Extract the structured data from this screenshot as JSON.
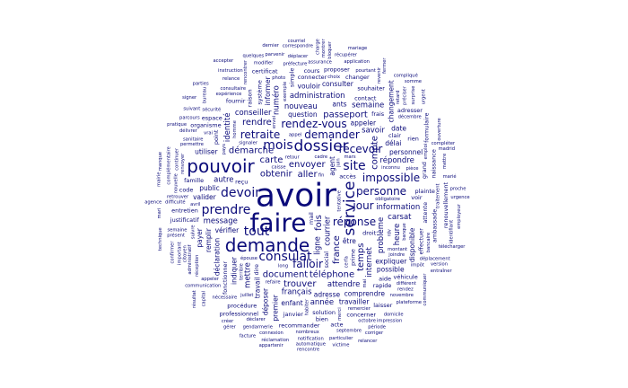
{
  "word_color": "#0b0b7a",
  "words": [
    {
      "text": "avoir",
      "weight": 100
    },
    {
      "text": "faire",
      "weight": 72
    },
    {
      "text": "pouvoir",
      "weight": 58
    },
    {
      "text": "demande",
      "weight": 50
    },
    {
      "text": "service",
      "weight": 48
    },
    {
      "text": "dossier",
      "weight": 42
    },
    {
      "text": "consulat",
      "weight": 38
    },
    {
      "text": "mois",
      "weight": 36
    },
    {
      "text": "site",
      "weight": 36
    },
    {
      "text": "devoir",
      "weight": 34
    },
    {
      "text": "tout",
      "weight": 30
    },
    {
      "text": "prendre",
      "weight": 30
    },
    {
      "text": "jour",
      "weight": 28
    },
    {
      "text": "réponse",
      "weight": 28
    },
    {
      "text": "falloir",
      "weight": 27
    },
    {
      "text": "personne",
      "weight": 26
    },
    {
      "text": "rendez-vous",
      "weight": 25
    },
    {
      "text": "recevoir",
      "weight": 25
    },
    {
      "text": "demander",
      "weight": 24
    },
    {
      "text": "retraite",
      "weight": 24
    },
    {
      "text": "impossible",
      "weight": 24
    },
    {
      "text": "document",
      "weight": 22
    },
    {
      "text": "téléphone",
      "weight": 22
    },
    {
      "text": "démarche",
      "weight": 22
    },
    {
      "text": "compte",
      "weight": 22
    },
    {
      "text": "passeport",
      "weight": 20
    },
    {
      "text": "aller",
      "weight": 20
    },
    {
      "text": "fois",
      "weight": 20
    },
    {
      "text": "envoyer",
      "weight": 19
    },
    {
      "text": "france",
      "weight": 19
    },
    {
      "text": "obtenir",
      "weight": 19
    },
    {
      "text": "temps",
      "weight": 18
    },
    {
      "text": "trouver",
      "weight": 18
    },
    {
      "text": "rendre",
      "weight": 18
    },
    {
      "text": "carte",
      "weight": 18
    },
    {
      "text": "nouveau",
      "weight": 17
    },
    {
      "text": "courrier",
      "weight": 17
    },
    {
      "text": "répondre",
      "weight": 17
    },
    {
      "text": "problème",
      "weight": 17
    },
    {
      "text": "français",
      "weight": 16
    },
    {
      "text": "information",
      "weight": 16
    },
    {
      "text": "autre",
      "weight": 16
    },
    {
      "text": "ligne",
      "weight": 16
    },
    {
      "text": "carsat",
      "weight": 16
    },
    {
      "text": "attendre",
      "weight": 15
    },
    {
      "text": "internet",
      "weight": 15
    },
    {
      "text": "savoir",
      "weight": 15
    },
    {
      "text": "heure",
      "weight": 15
    },
    {
      "text": "mettre",
      "weight": 15
    },
    {
      "text": "conseiller",
      "weight": 15
    },
    {
      "text": "administration",
      "weight": 14
    },
    {
      "text": "message",
      "weight": 14
    },
    {
      "text": "numéro",
      "weight": 14
    },
    {
      "text": "année",
      "weight": 14
    },
    {
      "text": "identité",
      "weight": 14
    },
    {
      "text": "semaine",
      "weight": 14
    },
    {
      "text": "question",
      "weight": 13
    },
    {
      "text": "délai",
      "weight": 13
    },
    {
      "text": "être",
      "weight": 13
    },
    {
      "text": "appeler",
      "weight": 13
    },
    {
      "text": "indiquer",
      "weight": 12
    },
    {
      "text": "expliquer",
      "weight": 12
    },
    {
      "text": "déclaration",
      "weight": 12
    },
    {
      "text": "vérifier",
      "weight": 12
    },
    {
      "text": "adresse",
      "weight": 12
    },
    {
      "text": "possible",
      "weight": 12
    },
    {
      "text": "enfant",
      "weight": 12
    },
    {
      "text": "valider",
      "weight": 12
    },
    {
      "text": "déposer",
      "weight": 12
    },
    {
      "text": "personnel",
      "weight": 12
    },
    {
      "text": "agent",
      "weight": 11
    },
    {
      "text": "travail",
      "weight": 11
    },
    {
      "text": "vouloir",
      "weight": 11
    },
    {
      "text": "informer",
      "weight": 11
    },
    {
      "text": "public",
      "weight": 11
    },
    {
      "text": "comprendre",
      "weight": 11
    },
    {
      "text": "remplir",
      "weight": 11
    },
    {
      "text": "travailler",
      "weight": 11
    },
    {
      "text": "premier",
      "weight": 11
    },
    {
      "text": "utiliser",
      "weight": 11
    },
    {
      "text": "consulter",
      "weight": 11
    },
    {
      "text": "changement",
      "weight": 11
    },
    {
      "text": "disponible",
      "weight": 11
    },
    {
      "text": "payer",
      "weight": 11
    },
    {
      "text": "ants",
      "weight": 11
    },
    {
      "text": "date",
      "weight": 11
    },
    {
      "text": "rapide",
      "weight": 10
    },
    {
      "text": "grand",
      "weight": 10
    },
    {
      "text": "social",
      "weight": 10
    },
    {
      "text": "prime",
      "weight": 10
    },
    {
      "text": "contact",
      "weight": 10
    },
    {
      "text": "point",
      "weight": 10
    },
    {
      "text": "solution",
      "weight": 10
    },
    {
      "text": "fournir",
      "weight": 10
    },
    {
      "text": "accès",
      "weight": 10
    },
    {
      "text": "système",
      "weight": 10
    },
    {
      "text": "plainte",
      "weight": 10
    },
    {
      "text": "clair",
      "weight": 10
    },
    {
      "text": "voir",
      "weight": 10
    },
    {
      "text": "simple",
      "weight": 10
    },
    {
      "text": "dire",
      "weight": 10
    },
    {
      "text": "fonctionner",
      "weight": 10
    },
    {
      "text": "effectuer",
      "weight": 10
    },
    {
      "text": "attente",
      "weight": 10
    },
    {
      "text": "aide",
      "weight": 10
    },
    {
      "text": "janvier",
      "weight": 10
    },
    {
      "text": "bien",
      "weight": 10
    },
    {
      "text": "mail",
      "weight": 10
    },
    {
      "text": "connecter",
      "weight": 9
    },
    {
      "text": "droit",
      "weight": 9
    },
    {
      "text": "souhaiter",
      "weight": 9
    },
    {
      "text": "proposer",
      "weight": 9
    },
    {
      "text": "concerner",
      "weight": 9
    },
    {
      "text": "procédure",
      "weight": 9
    },
    {
      "text": "justificatif",
      "weight": 9
    },
    {
      "text": "cours",
      "weight": 9
    },
    {
      "text": "adresser",
      "weight": 9
    },
    {
      "text": "changer",
      "weight": 9
    },
    {
      "text": "organisme",
      "weight": 9
    },
    {
      "text": "recommander",
      "weight": 9
    },
    {
      "text": "rien",
      "weight": 9
    },
    {
      "text": "frais",
      "weight": 9
    },
    {
      "text": "naissance",
      "weight": 9
    },
    {
      "text": "certificat",
      "weight": 9
    },
    {
      "text": "famille",
      "weight": 9
    },
    {
      "text": "entretien",
      "weight": 9
    },
    {
      "text": "renouvellement",
      "weight": 9
    },
    {
      "text": "professionnel",
      "weight": 9
    },
    {
      "text": "espace",
      "weight": 9
    },
    {
      "text": "ambassade",
      "weight": 9
    },
    {
      "text": "formulaire",
      "weight": 9
    },
    {
      "text": "raison",
      "weight": 9
    },
    {
      "text": "véhicule",
      "weight": 9
    },
    {
      "text": "laisser",
      "weight": 9
    },
    {
      "text": "reçu",
      "weight": 9
    },
    {
      "text": "code",
      "weight": 9
    },
    {
      "text": "acte",
      "weight": 9
    },
    {
      "text": "administratif",
      "weight": 8
    },
    {
      "text": "appel",
      "weight": 8
    },
    {
      "text": "long",
      "weight": 8
    },
    {
      "text": "permettre",
      "weight": 8
    },
    {
      "text": "emploi",
      "weight": 8
    },
    {
      "text": "impôt",
      "weight": 8
    },
    {
      "text": "expérience",
      "weight": 8
    },
    {
      "text": "montant",
      "weight": 8
    },
    {
      "text": "mars",
      "weight": 8
    },
    {
      "text": "terrible",
      "weight": 8
    },
    {
      "text": "préfecture",
      "weight": 8
    },
    {
      "text": "déclarer",
      "weight": 8
    },
    {
      "text": "difficulté",
      "weight": 8
    },
    {
      "text": "nécessaire",
      "weight": 8
    },
    {
      "text": "exemple",
      "weight": 8
    },
    {
      "text": "assurance",
      "weight": 8
    },
    {
      "text": "consultaire",
      "weight": 8
    },
    {
      "text": "différent",
      "weight": 8
    },
    {
      "text": "envoi",
      "weight": 8
    },
    {
      "text": "renvoyer",
      "weight": 8
    },
    {
      "text": "sécurité",
      "weight": 8
    },
    {
      "text": "traitement",
      "weight": 8
    },
    {
      "text": "nombreux",
      "weight": 8
    },
    {
      "text": "cadre",
      "weight": 8
    },
    {
      "text": "pièce",
      "weight": 8
    },
    {
      "text": "suivre",
      "weight": 8
    },
    {
      "text": "rdv",
      "weight": 8
    },
    {
      "text": "septembre",
      "weight": 8
    },
    {
      "text": "retour",
      "weight": 8
    },
    {
      "text": "refaire",
      "weight": 8
    },
    {
      "text": "préciser",
      "weight": 8
    },
    {
      "text": "appeler",
      "weight": 8
    },
    {
      "text": "décembre",
      "weight": 7
    },
    {
      "text": "fin",
      "weight": 7
    },
    {
      "text": "homme",
      "weight": 7
    },
    {
      "text": "sanitaire",
      "weight": 7
    },
    {
      "text": "novembre",
      "weight": 7
    },
    {
      "text": "octobre",
      "weight": 7
    },
    {
      "text": "juillet",
      "weight": 7
    },
    {
      "text": "avril",
      "weight": 7
    },
    {
      "text": "juin",
      "weight": 7
    },
    {
      "text": "mai",
      "weight": 7
    },
    {
      "text": "semaine",
      "weight": 7
    },
    {
      "text": "pourtant",
      "weight": 7
    },
    {
      "text": "vrai",
      "weight": 7
    },
    {
      "text": "modifier",
      "weight": 7
    },
    {
      "text": "déplacer",
      "weight": 7
    },
    {
      "text": "bancaire",
      "weight": 7
    },
    {
      "text": "caisse",
      "weight": 7
    },
    {
      "text": "gendarmerie",
      "weight": 7
    },
    {
      "text": "délivrer",
      "weight": 7
    },
    {
      "text": "réception",
      "weight": 7
    },
    {
      "text": "relance",
      "weight": 7
    },
    {
      "text": "application",
      "weight": 7
    },
    {
      "text": "banque",
      "weight": 7
    },
    {
      "text": "parvenir",
      "weight": 7
    },
    {
      "text": "automatique",
      "weight": 7
    },
    {
      "text": "continuer",
      "weight": 7
    },
    {
      "text": "marié",
      "weight": 7
    },
    {
      "text": "récupérer",
      "weight": 7
    },
    {
      "text": "réclamation",
      "weight": 7
    },
    {
      "text": "nouvelle",
      "weight": 7
    },
    {
      "text": "particulier",
      "weight": 7
    },
    {
      "text": "remercier",
      "weight": 7
    },
    {
      "text": "citoyen",
      "weight": 7
    },
    {
      "text": "signaler",
      "weight": 7
    },
    {
      "text": "obligatoire",
      "weight": 7
    },
    {
      "text": "rencontrer",
      "weight": 7
    },
    {
      "text": "complémentaire",
      "weight": 7
    },
    {
      "text": "cerfa",
      "weight": 7
    },
    {
      "text": "connexion",
      "weight": 7
    },
    {
      "text": "domicile",
      "weight": 7
    },
    {
      "text": "revenir",
      "weight": 7
    },
    {
      "text": "mettre",
      "weight": 7
    },
    {
      "text": "charge",
      "weight": 7
    },
    {
      "text": "pays",
      "weight": 7
    },
    {
      "text": "bureau",
      "weight": 7
    },
    {
      "text": "compliqué",
      "weight": 7
    },
    {
      "text": "retrouver",
      "weight": 7
    },
    {
      "text": "impression",
      "weight": 7
    },
    {
      "text": "communication",
      "weight": 7
    },
    {
      "text": "correspondre",
      "weight": 7
    },
    {
      "text": "déplacement",
      "weight": 7
    },
    {
      "text": "notification",
      "weight": 7
    },
    {
      "text": "plateforme",
      "weight": 7
    },
    {
      "text": "ouverture",
      "weight": 7
    },
    {
      "text": "suivant",
      "weight": 7
    },
    {
      "text": "présent",
      "weight": 7
    },
    {
      "text": "surprise",
      "weight": 7
    },
    {
      "text": "communiquer",
      "weight": 7
    },
    {
      "text": "télécharger",
      "weight": 7
    },
    {
      "text": "instruction",
      "weight": 7
    },
    {
      "text": "important",
      "weight": 7
    },
    {
      "text": "rencontre",
      "weight": 7
    },
    {
      "text": "identifiant",
      "weight": 7
    },
    {
      "text": "parcours",
      "weight": 7
    },
    {
      "text": "confirmer",
      "weight": 7
    },
    {
      "text": "pratique",
      "weight": 7
    },
    {
      "text": "rendez",
      "weight": 7
    },
    {
      "text": "période",
      "weight": 7
    },
    {
      "text": "proche",
      "weight": 7
    },
    {
      "text": "facture",
      "weight": 7
    },
    {
      "text": "créer",
      "weight": 7
    },
    {
      "text": "corriger",
      "weight": 7
    },
    {
      "text": "compléter",
      "weight": 7
    },
    {
      "text": "tentative",
      "weight": 7
    },
    {
      "text": "version",
      "weight": 7
    },
    {
      "text": "madrid",
      "weight": 7
    },
    {
      "text": "montrer",
      "weight": 7
    },
    {
      "text": "quelques",
      "weight": 7
    },
    {
      "text": "épouse",
      "weight": 7
    },
    {
      "text": "employeur",
      "weight": 7
    },
    {
      "text": "appartenir",
      "weight": 7
    },
    {
      "text": "capital",
      "weight": 7
    },
    {
      "text": "habiter",
      "weight": 7
    },
    {
      "text": "victime",
      "weight": 7
    },
    {
      "text": "entraîner",
      "weight": 7
    },
    {
      "text": "urgent",
      "weight": 7
    },
    {
      "text": "inconnu",
      "weight": 7
    },
    {
      "text": "joindre",
      "weight": 7
    },
    {
      "text": "fermer",
      "weight": 7
    },
    {
      "text": "retard",
      "weight": 7
    },
    {
      "text": "technique",
      "weight": 7
    },
    {
      "text": "bloquer",
      "weight": 7
    },
    {
      "text": "photo",
      "weight": 7
    },
    {
      "text": "mairie",
      "weight": 7
    },
    {
      "text": "mari",
      "weight": 7
    },
    {
      "text": "merci",
      "weight": 7
    },
    {
      "text": "courriel",
      "weight": 7
    },
    {
      "text": "parties",
      "weight": 7
    },
    {
      "text": "dernier",
      "weight": 7
    },
    {
      "text": "urgence",
      "weight": 7
    },
    {
      "text": "manque",
      "weight": 7
    },
    {
      "text": "mariage",
      "weight": 7
    },
    {
      "text": "somme",
      "weight": 7
    },
    {
      "text": "agence",
      "weight": 7
    },
    {
      "text": "résultat",
      "weight": 7
    },
    {
      "text": "gérer",
      "weight": 7
    },
    {
      "text": "signer",
      "weight": 7
    },
    {
      "text": "choix",
      "weight": 7
    },
    {
      "text": "relancer",
      "weight": 7
    },
    {
      "text": "accepter",
      "weight": 7
    }
  ]
}
